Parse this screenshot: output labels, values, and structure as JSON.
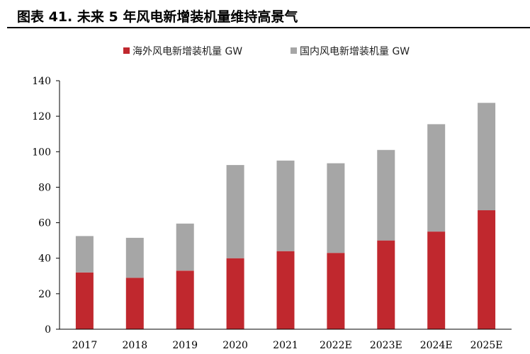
{
  "header": {
    "title": "图表 41. 未来 5 年风电新增装机量维持高景气"
  },
  "chart_data": {
    "type": "bar",
    "stacked": true,
    "categories": [
      "2017",
      "2018",
      "2019",
      "2020",
      "2021",
      "2022E",
      "2023E",
      "2024E",
      "2025E"
    ],
    "series": [
      {
        "name": "海外风电新增装机量 GW",
        "color": "#c0282e",
        "values": [
          32,
          29,
          33,
          40,
          44,
          43,
          50,
          55,
          67
        ]
      },
      {
        "name": "国内风电新增装机量 GW",
        "color": "#a6a6a6",
        "values": [
          20.5,
          22.5,
          26.5,
          52.5,
          51,
          50.5,
          51,
          60.5,
          60.5
        ]
      }
    ],
    "ylim": [
      0,
      140
    ],
    "yticks": [
      0,
      20,
      40,
      60,
      80,
      100,
      120,
      140
    ],
    "legend_position": "top-center",
    "grid": false
  }
}
